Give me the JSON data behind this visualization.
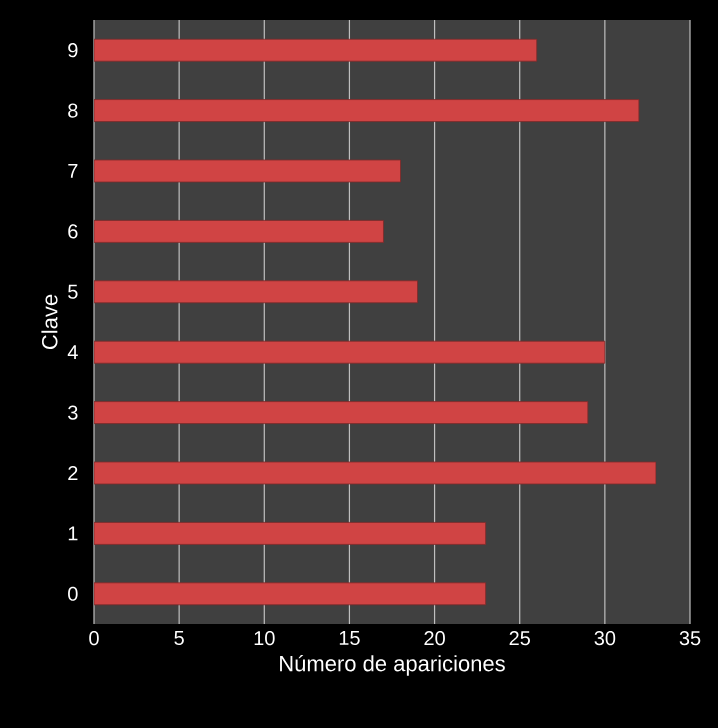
{
  "chart_data": {
    "type": "bar",
    "orientation": "horizontal",
    "xlabel": "Número  de apariciones",
    "ylabel": "Clave",
    "categories": [
      "9",
      "8",
      "7",
      "6",
      "5",
      "4",
      "3",
      "2",
      "1",
      "0"
    ],
    "values": [
      26,
      32,
      18,
      17,
      19,
      30,
      29,
      33,
      23,
      23
    ],
    "color": "#d04444",
    "xlim": [
      0,
      35
    ],
    "xticks": [
      0,
      5,
      10,
      15,
      20,
      25,
      30,
      35
    ],
    "grid": "x"
  }
}
